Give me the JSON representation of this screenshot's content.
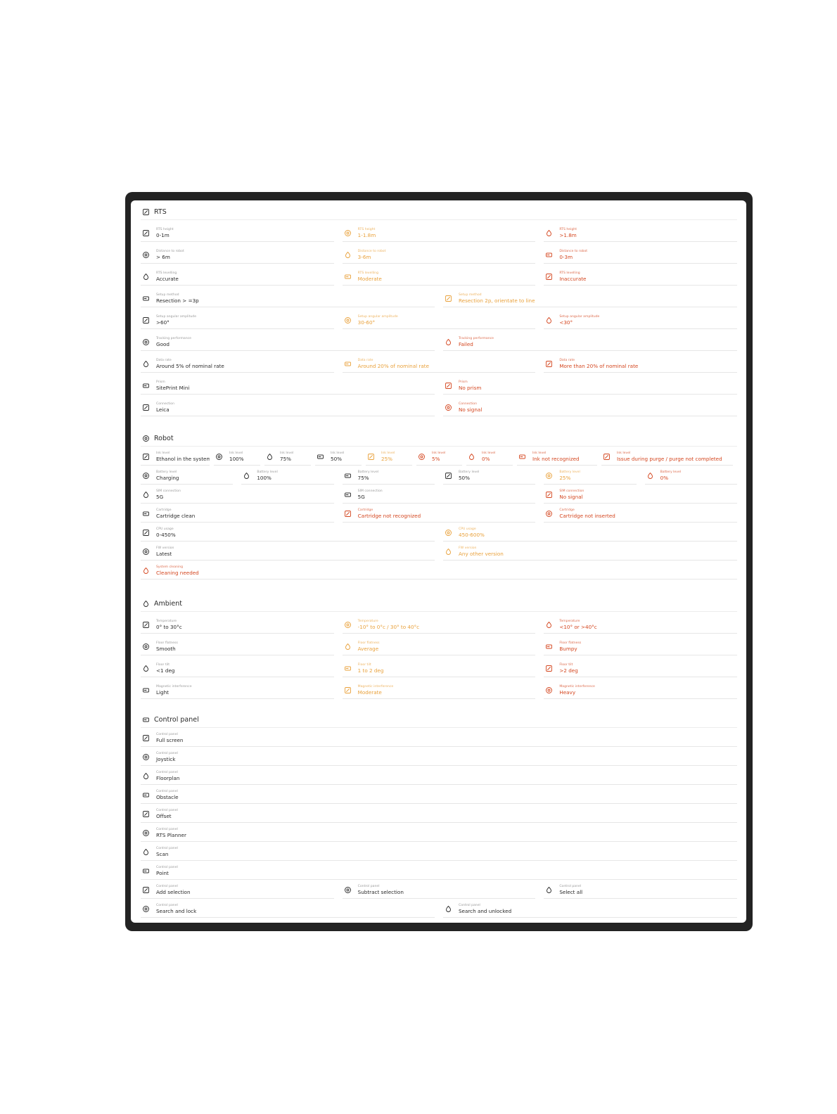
{
  "sections": [
    {
      "title": "RTS",
      "rows": [
        [
          {
            "label": "RTS height",
            "value": "0-1m",
            "color": "#2a2a2a"
          },
          {
            "label": "RTS height",
            "value": "1-1.8m",
            "color": "#e9a13b"
          },
          {
            "label": "RTS height",
            "value": ">1.8m",
            "color": "#d4461f"
          }
        ],
        [
          {
            "label": "Distance to robot",
            "value": "> 6m",
            "color": "#2a2a2a"
          },
          {
            "label": "Distance to robot",
            "value": "3-6m",
            "color": "#e9a13b"
          },
          {
            "label": "Distance to robot",
            "value": "0-3m",
            "color": "#d4461f"
          }
        ],
        [
          {
            "label": "RTS levelling",
            "value": "Accurate",
            "color": "#2a2a2a"
          },
          {
            "label": "RTS levelling",
            "value": "Moderate",
            "color": "#e9a13b"
          },
          {
            "label": "RTS levelling",
            "value": "Inaccurate",
            "color": "#d4461f"
          }
        ],
        [
          {
            "label": "Setup method",
            "value": "Resection > =3p",
            "color": "#2a2a2a"
          },
          {
            "label": "Setup method",
            "value": "Resection 2p, orientate to line",
            "color": "#e9a13b"
          }
        ],
        [
          {
            "label": "Setup angular amplitude",
            "value": ">60°",
            "color": "#2a2a2a"
          },
          {
            "label": "Setup angular amplitude",
            "value": "30-60°",
            "color": "#e9a13b"
          },
          {
            "label": "Setup angular amplitude",
            "value": "<30°",
            "color": "#d4461f"
          }
        ],
        [
          {
            "label": "Tracking performance",
            "value": "Good",
            "color": "#2a2a2a"
          },
          {
            "label": "Tracking performance",
            "value": "Failed",
            "color": "#d4461f"
          }
        ],
        [
          {
            "label": "Data rate",
            "value": "Around 5% of nominal rate",
            "color": "#2a2a2a"
          },
          {
            "label": "Data rate",
            "value": "Around 20% of nominal rate",
            "color": "#e9a13b"
          },
          {
            "label": "Data rate",
            "value": "More than 20% of nominal rate",
            "color": "#d4461f"
          }
        ],
        [
          {
            "label": "Prism",
            "value": "SitePrint Mini",
            "color": "#2a2a2a"
          },
          {
            "label": "Prism",
            "value": "No prism",
            "color": "#d4461f"
          }
        ],
        [
          {
            "label": "Connection",
            "value": "Leica",
            "color": "#2a2a2a"
          },
          {
            "label": "Connection",
            "value": "No signal",
            "color": "#d4461f"
          }
        ]
      ]
    },
    {
      "title": "Robot",
      "rows": [
        [
          {
            "label": "Ink level",
            "value": "Ethanol in the system",
            "color": "#2a2a2a"
          },
          {
            "label": "Ink level",
            "value": "100%",
            "color": "#2a2a2a"
          },
          {
            "label": "Ink level",
            "value": "75%",
            "color": "#2a2a2a"
          },
          {
            "label": "Ink level",
            "value": "50%",
            "color": "#2a2a2a"
          },
          {
            "label": "Ink level",
            "value": "25%",
            "color": "#e9a13b"
          },
          {
            "label": "Ink level",
            "value": "5%",
            "color": "#d4461f"
          },
          {
            "label": "Ink level",
            "value": "0%",
            "color": "#d4461f"
          },
          {
            "label": "Ink level",
            "value": "Ink not recognized",
            "color": "#d4461f"
          },
          {
            "label": "Ink level",
            "value": "Issue during purge / purge not completed",
            "color": "#d4461f"
          }
        ],
        [
          {
            "label": "Battery level",
            "value": "Charging",
            "color": "#2a2a2a"
          },
          {
            "label": "Battery level",
            "value": "100%",
            "color": "#2a2a2a"
          },
          {
            "label": "Battery level",
            "value": "75%",
            "color": "#2a2a2a"
          },
          {
            "label": "Battery level",
            "value": "50%",
            "color": "#2a2a2a"
          },
          {
            "label": "Battery level",
            "value": "25%",
            "color": "#e9a13b"
          },
          {
            "label": "Battery level",
            "value": "0%",
            "color": "#d4461f"
          }
        ],
        [
          {
            "label": "SIM connection",
            "value": "5G",
            "color": "#2a2a2a"
          },
          {
            "label": "SIM connection",
            "value": "5G",
            "color": "#2a2a2a"
          },
          {
            "label": "SIM connection",
            "value": "No signal",
            "color": "#d4461f"
          }
        ],
        [
          {
            "label": "Cartridge",
            "value": "Cartridge clean",
            "color": "#2a2a2a"
          },
          {
            "label": "Cartridge",
            "value": "Cartridge not recognized",
            "color": "#d4461f"
          },
          {
            "label": "Cartridge",
            "value": "Cartridge not inserted",
            "color": "#d4461f"
          }
        ],
        [
          {
            "label": "CPU usage",
            "value": "0-450%",
            "color": "#2a2a2a"
          },
          {
            "label": "CPU usage",
            "value": "450-600%",
            "color": "#e9a13b"
          }
        ],
        [
          {
            "label": "FW version",
            "value": "Latest",
            "color": "#2a2a2a"
          },
          {
            "label": "FW version",
            "value": "Any other version",
            "color": "#e9a13b"
          }
        ],
        [
          {
            "label": "System cleaning",
            "value": "Cleaning needed",
            "color": "#d4461f"
          }
        ]
      ]
    },
    {
      "title": "Ambient",
      "rows": [
        [
          {
            "label": "Temperature",
            "value": "0° to 30°c",
            "color": "#2a2a2a"
          },
          {
            "label": "Temperature",
            "value": "-10° to 0°c / 30° to 40°c",
            "color": "#e9a13b"
          },
          {
            "label": "Temperature",
            "value": "<10° or >40°c",
            "color": "#d4461f"
          }
        ],
        [
          {
            "label": "Floor flatness",
            "value": "Smooth",
            "color": "#2a2a2a"
          },
          {
            "label": "Floor flatness",
            "value": "Average",
            "color": "#e9a13b"
          },
          {
            "label": "Floor flatness",
            "value": "Bumpy",
            "color": "#d4461f"
          }
        ],
        [
          {
            "label": "Floor tilt",
            "value": "<1 deg",
            "color": "#2a2a2a"
          },
          {
            "label": "Floor tilt",
            "value": "1 to 2 deg",
            "color": "#e9a13b"
          },
          {
            "label": "Floor tilt",
            "value": ">2 deg",
            "color": "#d4461f"
          }
        ],
        [
          {
            "label": "Magnetic interference",
            "value": "Light",
            "color": "#2a2a2a"
          },
          {
            "label": "Magnetic interference",
            "value": "Moderate",
            "color": "#e9a13b"
          },
          {
            "label": "Magnetic interference",
            "value": "Heavy",
            "color": "#d4461f"
          }
        ]
      ]
    },
    {
      "title": "Control panel",
      "rows": [
        [
          {
            "label": "Control panel",
            "value": "Full screen",
            "color": "#2a2a2a"
          }
        ],
        [
          {
            "label": "Control panel",
            "value": "Joystick",
            "color": "#2a2a2a"
          }
        ],
        [
          {
            "label": "Control panel",
            "value": "Floorplan",
            "color": "#2a2a2a"
          }
        ],
        [
          {
            "label": "Control panel",
            "value": "Obstacle",
            "color": "#2a2a2a"
          }
        ],
        [
          {
            "label": "Control panel",
            "value": "Offset",
            "color": "#2a2a2a"
          }
        ],
        [
          {
            "label": "Control panel",
            "value": "RTS Planner",
            "color": "#2a2a2a"
          }
        ],
        [
          {
            "label": "Control panel",
            "value": "Scan",
            "color": "#2a2a2a"
          }
        ],
        [
          {
            "label": "Control panel",
            "value": "Point",
            "color": "#2a2a2a"
          }
        ],
        [
          {
            "label": "Control panel",
            "value": "Add selection",
            "color": "#2a2a2a"
          },
          {
            "label": "Control panel",
            "value": "Subtract selection",
            "color": "#2a2a2a"
          },
          {
            "label": "Control panel",
            "value": "Select all",
            "color": "#2a2a2a"
          }
        ],
        [
          {
            "label": "Control panel",
            "value": "Search and lock",
            "color": "#2a2a2a"
          },
          {
            "label": "Control panel",
            "value": "Search and unlocked",
            "color": "#2a2a2a"
          }
        ]
      ]
    }
  ]
}
